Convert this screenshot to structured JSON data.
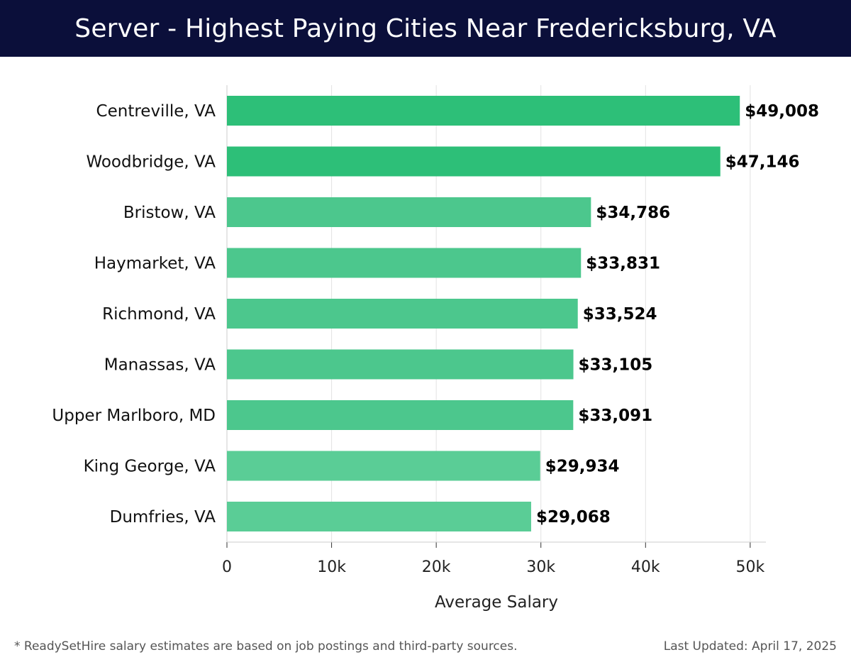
{
  "header": {
    "title": "Server - Highest Paying Cities Near Fredericksburg, VA"
  },
  "footer": {
    "note": "* ReadySetHire salary estimates are based on job postings and third-party sources.",
    "updated": "Last Updated: April 17, 2025"
  },
  "colors": {
    "header_bg": "#0b0f3a",
    "bar_high": "#2dbf78",
    "bar_mid": "#4cc78d",
    "bar_low": "#5acd96"
  },
  "chart_data": {
    "type": "bar",
    "orientation": "horizontal",
    "categories": [
      "Centreville, VA",
      "Woodbridge, VA",
      "Bristow, VA",
      "Haymarket, VA",
      "Richmond, VA",
      "Manassas, VA",
      "Upper Marlboro, MD",
      "King George, VA",
      "Dumfries, VA"
    ],
    "values": [
      49008,
      47146,
      34786,
      33831,
      33524,
      33105,
      33091,
      29934,
      29068
    ],
    "value_labels": [
      "$49,008",
      "$47,146",
      "$34,786",
      "$33,831",
      "$33,524",
      "$33,105",
      "$33,091",
      "$29,934",
      "$29,068"
    ],
    "xlabel": "Average Salary",
    "ylabel": "",
    "xlim": [
      0,
      51500
    ],
    "xticks": [
      0,
      10000,
      20000,
      30000,
      40000,
      50000
    ],
    "xtick_labels": [
      "0",
      "10k",
      "20k",
      "30k",
      "40k",
      "50k"
    ],
    "grid": "vertical",
    "legend": "none"
  }
}
